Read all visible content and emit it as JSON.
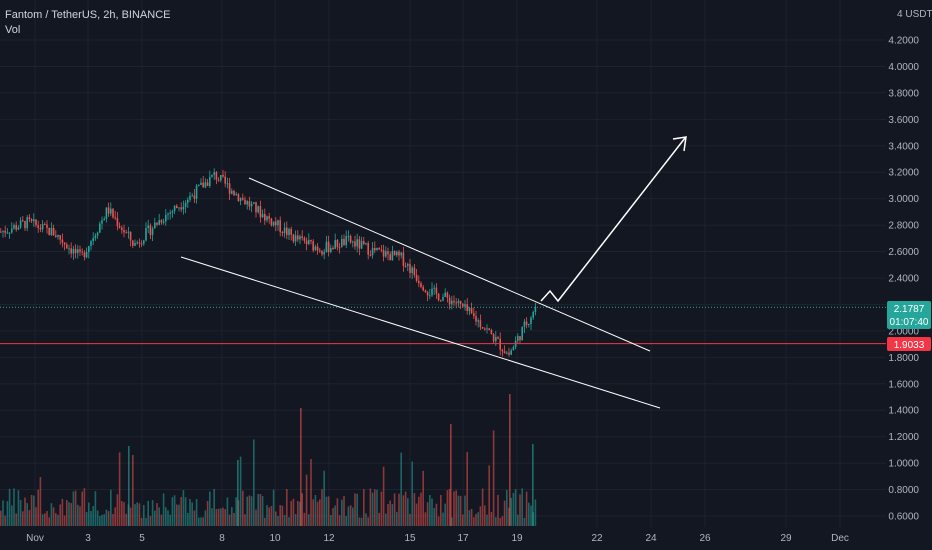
{
  "header": {
    "symbol": "Fantom / TetherUS, 2h, BINANCE",
    "volume_label": "Vol"
  },
  "price_axis": {
    "unit": "USDT",
    "ticks": [
      "4.2000",
      "4.0000",
      "3.8000",
      "3.6000",
      "3.4000",
      "3.2000",
      "3.0000",
      "2.8000",
      "2.6000",
      "2.4000",
      "2.2000",
      "2.0000",
      "1.8000",
      "1.6000",
      "1.4000",
      "1.2000",
      "1.0000",
      "0.8000",
      "0.6000"
    ]
  },
  "time_axis": {
    "ticks": [
      "Nov",
      "3",
      "5",
      "8",
      "10",
      "12",
      "15",
      "17",
      "19",
      "22",
      "24",
      "26",
      "29",
      "Dec"
    ]
  },
  "labels": {
    "last_price": "2.1787",
    "countdown": "01:07:40",
    "horizontal_line_price": "1.9033"
  },
  "colors": {
    "background": "#131722",
    "up": "#26a69a",
    "down": "#ef5350",
    "grid": "#1e222d",
    "text": "#b2b5be",
    "drawing": "#ffffff",
    "horizontal_line": "#f23645"
  },
  "chart_data": {
    "type": "candlestick",
    "timeframe": "2h",
    "exchange": "BINANCE",
    "ylim": [
      0.5,
      4.45
    ],
    "ohlc_keypoints": [
      {
        "date": "Oct 31",
        "close": 2.75
      },
      {
        "date": "Nov 1",
        "close": 2.82
      },
      {
        "date": "Nov 3",
        "close": 2.74
      },
      {
        "date": "Nov 4",
        "close": 2.55
      },
      {
        "date": "Nov 5",
        "close": 2.92
      },
      {
        "date": "Nov 6",
        "close": 2.65
      },
      {
        "date": "Nov 7",
        "close": 2.85
      },
      {
        "date": "Nov 8",
        "close": 3.0
      },
      {
        "date": "Nov 8",
        "close": 3.18
      },
      {
        "date": "Nov 9",
        "close": 3.0
      },
      {
        "date": "Nov 10",
        "close": 2.85
      },
      {
        "date": "Nov 11",
        "close": 2.7
      },
      {
        "date": "Nov 12",
        "close": 2.62
      },
      {
        "date": "Nov 13",
        "close": 2.68
      },
      {
        "date": "Nov 14",
        "close": 2.6
      },
      {
        "date": "Nov 15",
        "close": 2.55
      },
      {
        "date": "Nov 16",
        "close": 2.3
      },
      {
        "date": "Nov 17",
        "close": 2.22
      },
      {
        "date": "Nov 18",
        "close": 2.05
      },
      {
        "date": "Nov 18",
        "close": 1.82
      },
      {
        "date": "Nov 19",
        "close": 2.18
      }
    ],
    "volume_range": [
      0,
      1.0
    ]
  }
}
